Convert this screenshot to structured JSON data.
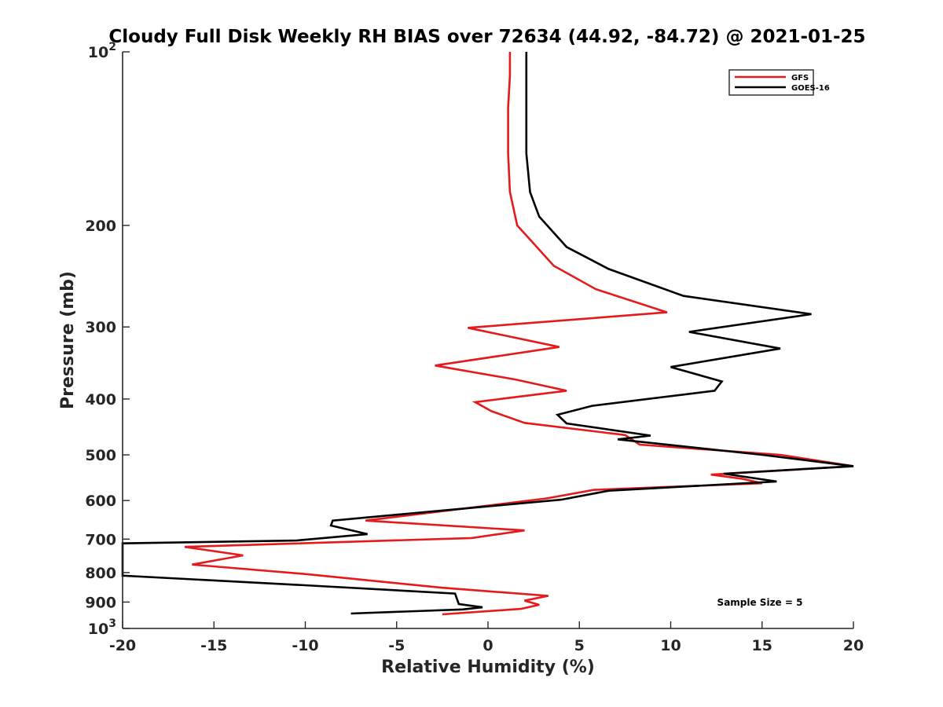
{
  "chart_data": {
    "type": "line",
    "title": "Cloudy Full Disk Weekly RH BIAS over 72634 (44.92, -84.72) @ 2021-01-25",
    "xlabel": "Relative Humidity (%)",
    "ylabel": "Pressure (mb)",
    "xlim": [
      -20,
      20
    ],
    "ylim": [
      100,
      1000
    ],
    "y_scale": "log",
    "y_reversed": true,
    "grid": false,
    "legend_position": "top-right",
    "x_ticks": [
      -20,
      -15,
      -10,
      -5,
      0,
      5,
      10,
      15,
      20
    ],
    "x_tick_labels": [
      "-20",
      "-15",
      "-10",
      "-5",
      "0",
      "5",
      "10",
      "15",
      "20"
    ],
    "y_ticks": [
      100,
      200,
      300,
      400,
      500,
      600,
      700,
      800,
      900,
      1000
    ],
    "y_tick_labels": [
      {
        "base": "10",
        "exp": "2"
      },
      {
        "base": "200",
        "exp": ""
      },
      {
        "base": "300",
        "exp": ""
      },
      {
        "base": "400",
        "exp": ""
      },
      {
        "base": "500",
        "exp": ""
      },
      {
        "base": "600",
        "exp": ""
      },
      {
        "base": "700",
        "exp": ""
      },
      {
        "base": "800",
        "exp": ""
      },
      {
        "base": "900",
        "exp": ""
      },
      {
        "base": "10",
        "exp": "3"
      }
    ],
    "annotation": "Sample Size = 5",
    "series": [
      {
        "name": "GFS",
        "color": "#e41a1c",
        "points": [
          [
            1.2,
            100
          ],
          [
            1.2,
            110
          ],
          [
            1.1,
            125
          ],
          [
            1.1,
            150
          ],
          [
            1.2,
            175
          ],
          [
            1.6,
            200
          ],
          [
            2.5,
            215
          ],
          [
            3.6,
            235
          ],
          [
            5.9,
            258
          ],
          [
            9.8,
            283
          ],
          [
            -1.1,
            301
          ],
          [
            3.9,
            325
          ],
          [
            -2.9,
            350
          ],
          [
            1.5,
            370
          ],
          [
            4.3,
            387
          ],
          [
            -0.7,
            405
          ],
          [
            0.2,
            420
          ],
          [
            2.0,
            440
          ],
          [
            7.5,
            462
          ],
          [
            8.3,
            480
          ],
          [
            16.0,
            500
          ],
          [
            20.0,
            523
          ],
          [
            12.2,
            541
          ],
          [
            13.9,
            550
          ],
          [
            15.0,
            560
          ],
          [
            5.8,
            575
          ],
          [
            3.2,
            595
          ],
          [
            -6.7,
            650
          ],
          [
            2.0,
            676
          ],
          [
            -0.9,
            697
          ],
          [
            -16.6,
            722
          ],
          [
            -13.4,
            747
          ],
          [
            -16.2,
            775
          ],
          [
            -9.9,
            805
          ],
          [
            -2.5,
            850
          ],
          [
            3.3,
            878
          ],
          [
            2.0,
            895
          ],
          [
            2.8,
            910
          ],
          [
            1.8,
            925
          ],
          [
            -2.5,
            945
          ]
        ]
      },
      {
        "name": "GOES-16",
        "color": "#000000",
        "points": [
          [
            2.1,
            100
          ],
          [
            2.1,
            110
          ],
          [
            2.1,
            125
          ],
          [
            2.1,
            150
          ],
          [
            2.3,
            175
          ],
          [
            2.8,
            193
          ],
          [
            4.3,
            218
          ],
          [
            6.6,
            238
          ],
          [
            10.7,
            265
          ],
          [
            17.7,
            285
          ],
          [
            11.0,
            306
          ],
          [
            16.0,
            327
          ],
          [
            10.0,
            352
          ],
          [
            12.8,
            373
          ],
          [
            12.4,
            387
          ],
          [
            5.7,
            411
          ],
          [
            3.8,
            426
          ],
          [
            4.3,
            441
          ],
          [
            8.9,
            463
          ],
          [
            7.1,
            470
          ],
          [
            15.0,
            500
          ],
          [
            20.0,
            523
          ],
          [
            12.9,
            539
          ],
          [
            15.8,
            556
          ],
          [
            6.6,
            577
          ],
          [
            4.0,
            598
          ],
          [
            -8.5,
            650
          ],
          [
            -8.6,
            663
          ],
          [
            -6.6,
            686
          ],
          [
            -10.5,
            704
          ],
          [
            -20.0,
            712
          ],
          [
            -20.0,
            810
          ],
          [
            -10.5,
            840
          ],
          [
            -1.8,
            870
          ],
          [
            -1.6,
            907
          ],
          [
            -0.3,
            919
          ],
          [
            -1.4,
            927
          ],
          [
            -7.5,
            942
          ]
        ]
      }
    ]
  }
}
